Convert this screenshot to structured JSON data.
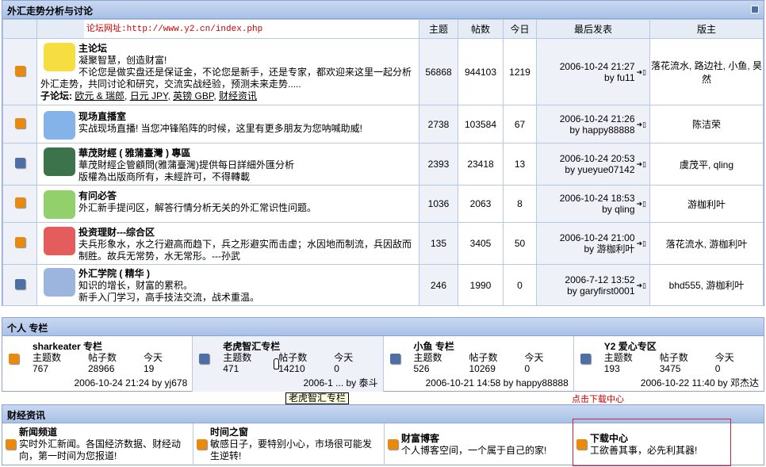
{
  "section1": {
    "title": "外汇走势分析与讨论",
    "overlay_url": "论坛网址:http://www.y2.cn/index.php",
    "columns": [
      "主题",
      "帖数",
      "今日",
      "最后发表",
      "版主"
    ],
    "forums": [
      {
        "name": "主论坛",
        "desc": "凝聚智慧，创造财富!",
        "desc2": "不论您是做实盘还是保证金，不论您是新手，还是专家，都欢迎来这里一起分析外汇走势，共同讨论和研究，交流实战经验，预测未来走势.....",
        "sub_label": "子论坛:",
        "subs": [
          "欧元 & 瑞郎",
          "日元 JPY",
          "英镑 GBP",
          "财经资讯"
        ],
        "topics": "56868",
        "posts": "944103",
        "today": "1219",
        "last_time": "2006-10-24 21:27",
        "last_by": "by fu11",
        "mods": "落花流水, 路边社, 小鱼, 昊然",
        "icon": "orange"
      },
      {
        "name": "现场直播室",
        "desc": "实战现场直播! 当您冲锋陷阵的时候，这里有更多朋友为您呐喊助威!",
        "topics": "2738",
        "posts": "103584",
        "today": "67",
        "last_time": "2006-10-24 21:26",
        "last_by": "by happy88888",
        "mods": "陈洁荣",
        "icon": "orange"
      },
      {
        "name": "華茂財經 ( 雅蒲臺灣 ) 專區",
        "desc": "華茂財經企管顧問(雅蒲臺灣)提供每日詳細外匯分析",
        "desc2": "版權為出版商所有，未經許可，不得轉載",
        "topics": "2393",
        "posts": "23418",
        "today": "13",
        "last_time": "2006-10-24 20:53",
        "last_by": "by yueyue07142",
        "mods": "虞茂平, qling",
        "icon": "blue"
      },
      {
        "name": "有问必答",
        "desc": "外汇新手提问区，解答行情分析无关的外汇常识性问题。",
        "topics": "1036",
        "posts": "2063",
        "today": "8",
        "last_time": "2006-10-24 18:53",
        "last_by": "by qling",
        "mods": "游枷利叶",
        "icon": "orange"
      },
      {
        "name": "投资理财---综合区",
        "desc": "夫兵形象水，水之行避高而趋下，兵之形避实而击虚；水因地而制流，兵因敌而制胜。故兵无常势，水无常形。---孙武",
        "topics": "135",
        "posts": "3405",
        "today": "50",
        "last_time": "2006-10-24 21:00",
        "last_by": "by 游枷利叶",
        "mods": "落花流水, 游枷利叶",
        "icon": "orange"
      },
      {
        "name": "外汇学院 ( 精华 )",
        "desc": "知识的增长，财富的累积。",
        "desc2": "新手入门学习，高手技法交流，战术重温。",
        "topics": "246",
        "posts": "1990",
        "today": "0",
        "last_time": "2006-7-12 13:52",
        "last_by": "by garyfirst0001",
        "mods": "bhd555, 游枷利叶",
        "icon": "blue"
      }
    ]
  },
  "section2": {
    "title": "个人 专栏",
    "labels": [
      "主题数",
      "帖子数",
      "今天"
    ],
    "columns": [
      {
        "name": "sharkeater 专栏",
        "topics": "767",
        "posts": "28966",
        "today": "19",
        "last": "2006-10-24 21:24 by yj678",
        "icon": "orange"
      },
      {
        "name": "老虎智汇专栏",
        "topics": "471",
        "posts": "14210",
        "today": "0",
        "last": "2006-1 ... by 泰斗",
        "icon": "blue"
      },
      {
        "name": "小鱼 专栏",
        "topics": "526",
        "posts": "10269",
        "today": "0",
        "last": "2006-10-21 14:58 by happy88888",
        "icon": "blue"
      },
      {
        "name": "Y2 爱心专区",
        "topics": "193",
        "posts": "3475",
        "today": "0",
        "last": "2006-10-22 11:40 by 邓杰达",
        "icon": "blue"
      }
    ],
    "tooltip": "老虎智汇专栏"
  },
  "annotation": "点击下载中心",
  "section3": {
    "title": "财经资讯",
    "items": [
      {
        "name": "新闻频道",
        "desc": "实时外汇新闻。各国经济数据、财经动向，第一时间为您报道!"
      },
      {
        "name": "时间之窗",
        "desc": "敏感日子，要特别小心，市场很可能发生逆转!"
      },
      {
        "name": "财富博客",
        "desc": "个人博客空间，一个属于自己的家!"
      },
      {
        "name": "下载中心",
        "desc": "工欲善其事，必先利其器!"
      }
    ]
  },
  "colors": {
    "orange_icon": "#e88a10",
    "blue_icon": "#4d6fa6",
    "header": "#a9c1e8",
    "annotation": "#d00000"
  }
}
